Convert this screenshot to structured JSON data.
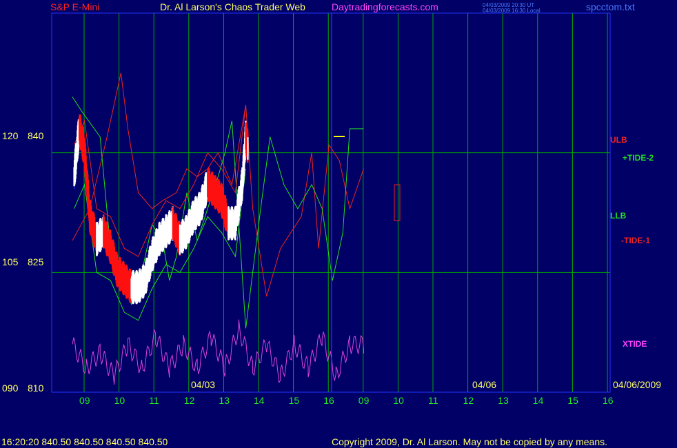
{
  "header": {
    "symbol": "S&P E-Mini",
    "title": "Dr. Al Larson's Chaos Trader Web",
    "site": "Daytradingforecasts.com",
    "stamp_line1": "04/03/2009 20:30 UT",
    "stamp_line2": "04/03/2009 16:30 Local",
    "file": "spcctom.txt"
  },
  "footer": {
    "quote": "16:20:20  840.50 840.50 840.50 840.50",
    "copyright": "Copyright 2009, Dr. Al Larson. May not be copied by any means."
  },
  "colors": {
    "background": "#000066",
    "grid": "#00aa00",
    "price_up": "#ffffff",
    "price_down": "#ff1111",
    "avg_line": "#ffff00",
    "ulb": "#ee2222",
    "llb": "#22dd22",
    "tide_plus": "#22dd22",
    "tide_minus": "#ee2222",
    "xtide": "#dd44dd",
    "channel": "#2233ff"
  },
  "chart_data": {
    "type": "line",
    "title": "S&P E-Mini",
    "y_axis": {
      "ticks": [
        {
          "left": "120",
          "right": "840",
          "value": 840
        },
        {
          "left": "105",
          "right": "825",
          "value": 825
        },
        {
          "left": "090",
          "right": "810",
          "value": 810
        }
      ],
      "range": [
        810,
        857.5
      ]
    },
    "x_axis": {
      "hour_ticks": [
        "09",
        "10",
        "11",
        "12",
        "13",
        "14",
        "15",
        "16",
        "09",
        "10",
        "11",
        "12",
        "13",
        "14",
        "15",
        "16"
      ],
      "dates": [
        "04/03",
        "04/06",
        "04/06/2009"
      ]
    },
    "labels": {
      "ulb": "ULB",
      "tide_plus": "+TIDE-2",
      "llb": "LLB",
      "tide_minus": "-TIDE-1",
      "xtide": "XTIDE"
    },
    "last_price": 840.5,
    "price_path": [
      [
        0.05,
        837
      ],
      [
        0.2,
        843
      ],
      [
        0.35,
        840
      ],
      [
        0.5,
        832
      ],
      [
        0.7,
        829
      ],
      [
        0.9,
        830
      ],
      [
        1.1,
        828
      ],
      [
        1.3,
        825
      ],
      [
        1.5,
        824
      ],
      [
        1.7,
        823
      ],
      [
        1.9,
        823
      ],
      [
        2.1,
        824
      ],
      [
        2.3,
        827
      ],
      [
        2.5,
        829
      ],
      [
        2.7,
        830
      ],
      [
        2.9,
        831
      ],
      [
        3.1,
        829
      ],
      [
        3.3,
        830
      ],
      [
        3.5,
        832
      ],
      [
        3.7,
        833
      ],
      [
        3.9,
        836
      ],
      [
        4.1,
        835
      ],
      [
        4.3,
        834
      ],
      [
        4.5,
        831
      ],
      [
        4.7,
        831
      ],
      [
        4.9,
        836
      ],
      [
        5.0,
        842
      ],
      [
        5.06,
        840.5
      ]
    ],
    "ulb": [
      [
        0,
        829
      ],
      [
        0.5,
        833
      ],
      [
        1.0,
        842
      ],
      [
        1.4,
        850
      ],
      [
        1.6,
        843
      ],
      [
        1.9,
        835
      ],
      [
        2.3,
        833
      ],
      [
        2.6,
        834
      ],
      [
        3.0,
        835
      ],
      [
        3.3,
        838
      ],
      [
        3.6,
        837
      ],
      [
        3.9,
        838
      ],
      [
        4.2,
        840
      ],
      [
        4.6,
        836
      ],
      [
        5.0,
        846
      ],
      [
        5.2,
        833
      ],
      [
        5.6,
        822
      ],
      [
        6.0,
        828
      ],
      [
        6.6,
        832
      ],
      [
        6.9,
        840
      ],
      [
        7.1,
        828
      ],
      [
        7.4,
        841
      ],
      [
        7.7,
        839
      ],
      [
        8.0,
        833
      ],
      [
        8.4,
        838
      ]
    ],
    "llb": [
      [
        0,
        847
      ],
      [
        0.3,
        845
      ],
      [
        0.8,
        842
      ],
      [
        1.1,
        828
      ],
      [
        1.5,
        824
      ],
      [
        1.7,
        821
      ],
      [
        2.0,
        825
      ],
      [
        2.3,
        831
      ],
      [
        2.6,
        829
      ],
      [
        2.8,
        824
      ],
      [
        3.0,
        827
      ],
      [
        3.3,
        835
      ],
      [
        3.6,
        829
      ],
      [
        3.9,
        833
      ],
      [
        4.2,
        837
      ],
      [
        4.4,
        840
      ],
      [
        4.6,
        844
      ],
      [
        5.0,
        818
      ],
      [
        5.4,
        832
      ],
      [
        5.7,
        842
      ],
      [
        6.1,
        836
      ],
      [
        6.5,
        833
      ],
      [
        6.9,
        836
      ],
      [
        7.2,
        833
      ],
      [
        7.5,
        824
      ],
      [
        7.8,
        830
      ],
      [
        8.0,
        843
      ],
      [
        8.4,
        843
      ]
    ],
    "xtide": [
      [
        0,
        816
      ],
      [
        0.4,
        813
      ],
      [
        0.8,
        815
      ],
      [
        1.2,
        812
      ],
      [
        1.6,
        816
      ],
      [
        2.0,
        813
      ],
      [
        2.4,
        817
      ],
      [
        2.8,
        813
      ],
      [
        3.2,
        816
      ],
      [
        3.6,
        813
      ],
      [
        4.0,
        817
      ],
      [
        4.4,
        813
      ],
      [
        4.8,
        818
      ],
      [
        5.2,
        813
      ],
      [
        5.6,
        816
      ],
      [
        6.0,
        812
      ],
      [
        6.4,
        816
      ],
      [
        6.8,
        813
      ],
      [
        7.2,
        817
      ],
      [
        7.6,
        812
      ],
      [
        8.0,
        816
      ],
      [
        8.4,
        816
      ]
    ]
  }
}
